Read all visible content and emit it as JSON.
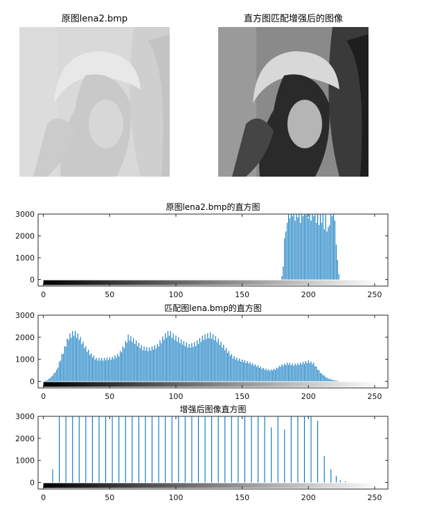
{
  "images": [
    {
      "title": "原图lena2.bmp",
      "style": "low-contrast"
    },
    {
      "title": "直方图匹配增强后的图像",
      "style": "high-contrast"
    }
  ],
  "colors": {
    "bar": "#0072BD",
    "axis": "#262626",
    "background": "#ffffff"
  },
  "chart_data": [
    {
      "type": "bar",
      "title": "原图lena2.bmp的直方图",
      "xlim": [
        -4,
        260
      ],
      "ylim": [
        -300,
        3000
      ],
      "xticks": [
        0,
        50,
        100,
        150,
        200,
        250
      ],
      "yticks": [
        0,
        1000,
        2000,
        3000
      ],
      "colorbar": "grayscale",
      "x": [
        180,
        181,
        182,
        183,
        184,
        185,
        186,
        187,
        188,
        189,
        190,
        191,
        192,
        193,
        194,
        195,
        196,
        197,
        198,
        199,
        200,
        201,
        202,
        203,
        204,
        205,
        206,
        207,
        208,
        209,
        210,
        211,
        212,
        213,
        214,
        215,
        216,
        217,
        218,
        219,
        220,
        221,
        222,
        223
      ],
      "values": [
        150,
        600,
        1900,
        2200,
        2600,
        3000,
        2800,
        3000,
        2900,
        3000,
        2700,
        3000,
        2850,
        3000,
        2600,
        3000,
        2900,
        3000,
        2950,
        3000,
        2800,
        3000,
        2700,
        3000,
        2900,
        3000,
        2600,
        3000,
        2500,
        3000,
        2600,
        3000,
        2300,
        3000,
        2200,
        2400,
        2500,
        3000,
        2900,
        3000,
        2700,
        1600,
        900,
        250
      ]
    },
    {
      "type": "bar",
      "title": "匹配图lena.bmp的直方图",
      "xlim": [
        -4,
        260
      ],
      "ylim": [
        -300,
        3000
      ],
      "xticks": [
        0,
        50,
        100,
        150,
        200,
        250
      ],
      "yticks": [
        0,
        1000,
        2000,
        3000
      ],
      "colorbar": "grayscale",
      "profile": [
        [
          0,
          0
        ],
        [
          3,
          50
        ],
        [
          6,
          200
        ],
        [
          10,
          500
        ],
        [
          13,
          1000
        ],
        [
          16,
          1500
        ],
        [
          19,
          2000
        ],
        [
          23,
          2200
        ],
        [
          27,
          2000
        ],
        [
          32,
          1500
        ],
        [
          36,
          1200
        ],
        [
          40,
          1000
        ],
        [
          46,
          1000
        ],
        [
          52,
          1050
        ],
        [
          57,
          1200
        ],
        [
          61,
          1600
        ],
        [
          64,
          2000
        ],
        [
          67,
          1900
        ],
        [
          71,
          1700
        ],
        [
          75,
          1500
        ],
        [
          80,
          1450
        ],
        [
          86,
          1600
        ],
        [
          91,
          2000
        ],
        [
          95,
          2200
        ],
        [
          99,
          2000
        ],
        [
          104,
          1800
        ],
        [
          110,
          1600
        ],
        [
          115,
          1700
        ],
        [
          121,
          2000
        ],
        [
          126,
          2100
        ],
        [
          131,
          1900
        ],
        [
          137,
          1500
        ],
        [
          143,
          1100
        ],
        [
          149,
          950
        ],
        [
          155,
          850
        ],
        [
          161,
          700
        ],
        [
          167,
          550
        ],
        [
          171,
          500
        ],
        [
          175,
          550
        ],
        [
          179,
          700
        ],
        [
          184,
          800
        ],
        [
          189,
          750
        ],
        [
          194,
          800
        ],
        [
          200,
          900
        ],
        [
          204,
          800
        ],
        [
          209,
          400
        ],
        [
          214,
          150
        ],
        [
          219,
          50
        ],
        [
          224,
          0
        ],
        [
          255,
          0
        ]
      ]
    },
    {
      "type": "bar",
      "title": "增强后图像直方图",
      "xlim": [
        -4,
        260
      ],
      "ylim": [
        -300,
        3000
      ],
      "xticks": [
        0,
        50,
        100,
        150,
        200,
        250
      ],
      "yticks": [
        0,
        1000,
        2000,
        3000
      ],
      "colorbar": "grayscale",
      "x": [
        7,
        12,
        17,
        22,
        27,
        32,
        37,
        42,
        47,
        52,
        57,
        62,
        67,
        72,
        77,
        82,
        87,
        92,
        97,
        102,
        107,
        112,
        117,
        122,
        127,
        132,
        137,
        142,
        147,
        152,
        157,
        162,
        167,
        172,
        177,
        182,
        187,
        192,
        197,
        202,
        207,
        212,
        217,
        221,
        224,
        228
      ],
      "values": [
        600,
        3000,
        3000,
        3000,
        3000,
        3000,
        3000,
        3000,
        3000,
        3000,
        3000,
        3000,
        3000,
        3000,
        3000,
        3000,
        3000,
        3000,
        3000,
        3000,
        3000,
        3000,
        3000,
        3000,
        3000,
        3000,
        3000,
        3000,
        3000,
        3000,
        3000,
        3000,
        3000,
        2500,
        3000,
        2400,
        3000,
        3000,
        3000,
        3000,
        2800,
        1200,
        600,
        300,
        100,
        50
      ]
    }
  ]
}
